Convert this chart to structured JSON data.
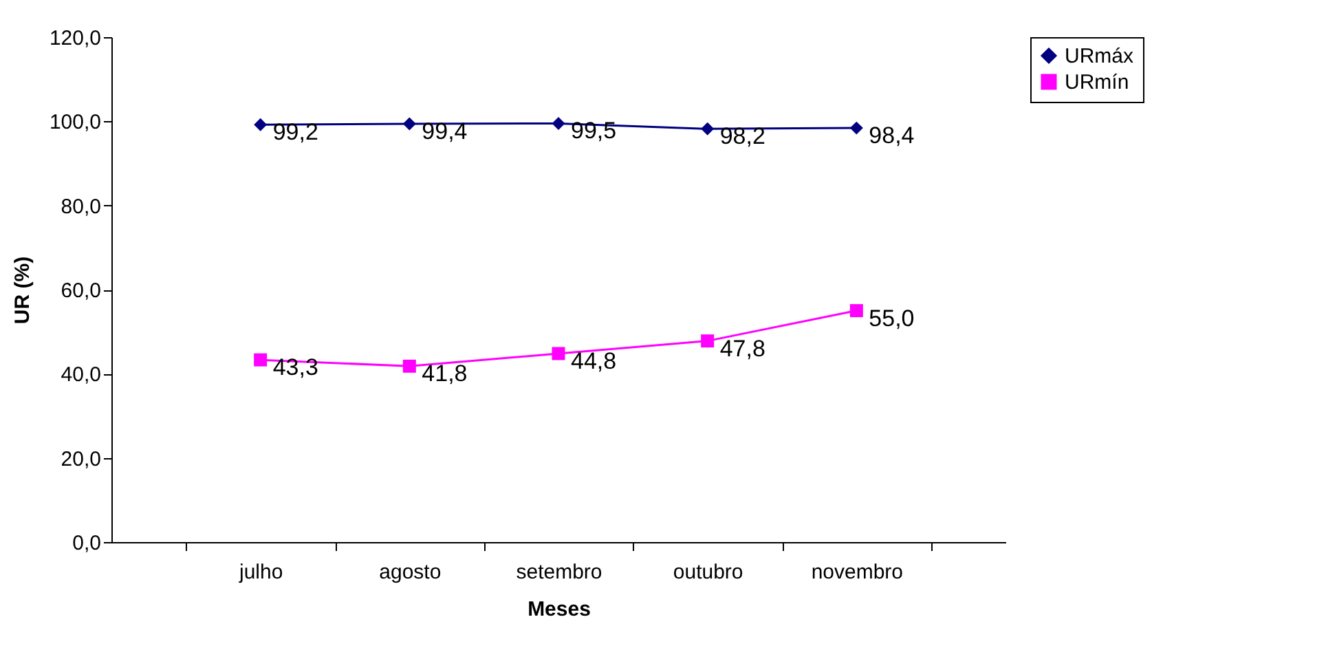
{
  "chart_data": {
    "type": "line",
    "xlabel": "Meses",
    "ylabel": "UR (%)",
    "categories": [
      "julho",
      "agosto",
      "setembro",
      "outubro",
      "novembro"
    ],
    "series": [
      {
        "name": "URmáx",
        "color": "#000080",
        "marker": "diamond",
        "values": [
          99.2,
          99.4,
          99.5,
          98.2,
          98.4
        ],
        "value_labels": [
          "99,2",
          "99,4",
          "99,5",
          "98,2",
          "98,4"
        ]
      },
      {
        "name": "URmín",
        "color": "#ff00ff",
        "marker": "square",
        "values": [
          43.3,
          41.8,
          44.8,
          47.8,
          55.0
        ],
        "value_labels": [
          "43,3",
          "41,8",
          "44,8",
          "47,8",
          "55,0"
        ]
      }
    ],
    "ylim": [
      0,
      120
    ],
    "yticks": [
      {
        "value": 0,
        "label": "0,0"
      },
      {
        "value": 20,
        "label": "20,0"
      },
      {
        "value": 40,
        "label": "40,0"
      },
      {
        "value": 60,
        "label": "60,0"
      },
      {
        "value": 80,
        "label": "80,0"
      },
      {
        "value": 100,
        "label": "100,0"
      },
      {
        "value": 120,
        "label": "120,0"
      }
    ],
    "grid": false,
    "legend": "right",
    "line_style": "solid"
  }
}
